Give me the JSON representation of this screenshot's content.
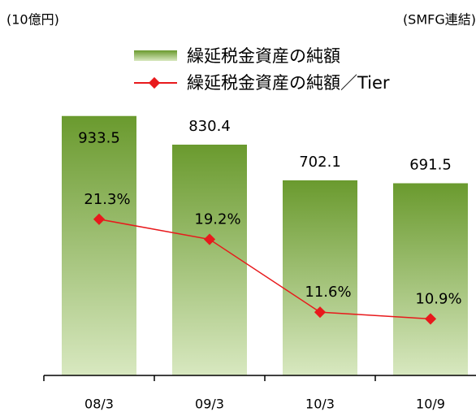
{
  "chart_data": {
    "type": "bar",
    "unit_label": "(10億円)",
    "scope_label": "(SMFG連結)",
    "categories": [
      "08/3",
      "09/3",
      "10/3",
      "10/9"
    ],
    "series": [
      {
        "name": "繰延税金資産の純額",
        "type": "bar",
        "color": "#6a9a2e",
        "values": [
          933.5,
          830.4,
          702.1,
          691.5
        ]
      },
      {
        "name": "繰延税金資産の純額／Tier",
        "type": "line",
        "axis": "y2",
        "color": "#e8191c",
        "values": [
          21.3,
          19.2,
          11.6,
          10.9
        ],
        "value_labels": [
          "21.3%",
          "19.2%",
          "11.6%",
          "10.9%"
        ]
      }
    ],
    "ylim": [
      0,
      1000
    ],
    "y2lim": [
      5,
      34
    ]
  }
}
